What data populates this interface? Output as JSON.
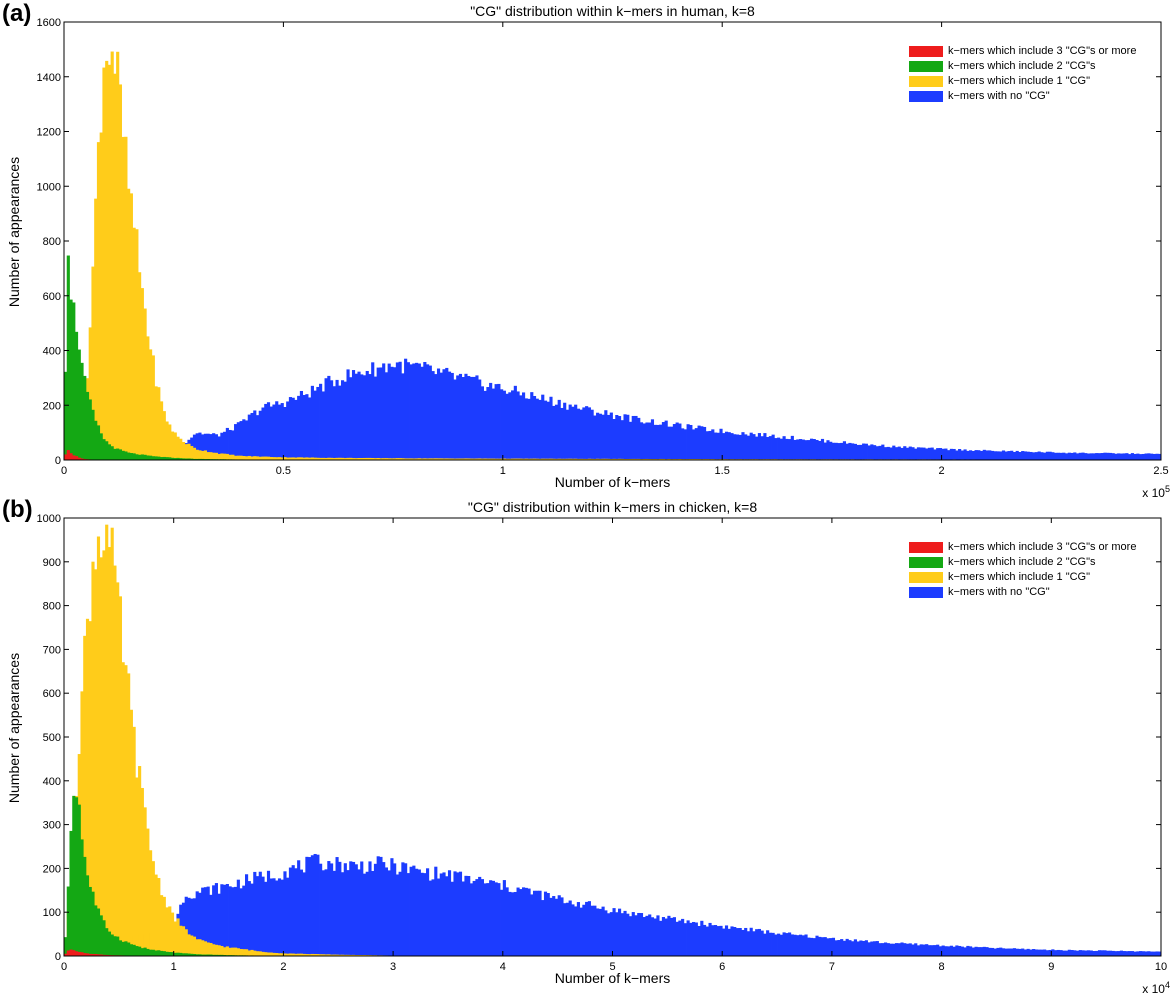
{
  "figure": {
    "panels": [
      {
        "letter": "(a)",
        "chart_title": "\"CG\" distribution within k−mers in human, k=8",
        "x_label": "Number of k−mers",
        "y_label": "Number of appearances",
        "multiplier_base": "x 10",
        "multiplier_exp": "5",
        "legend": [
          "k−mers which include 3 \"CG\"s or more",
          "k−mers which include 2 \"CG\"s",
          "k−mers which include 1 \"CG\"",
          "k−mers with no \"CG\""
        ]
      },
      {
        "letter": "(b)",
        "chart_title": "\"CG\" distribution within k−mers in chicken, k=8",
        "x_label": "Number of k−mers",
        "y_label": "Number of appearances",
        "multiplier_base": "x 10",
        "multiplier_exp": "4",
        "legend": [
          "k−mers which include 3 \"CG\"s or more",
          "k−mers which include 2 \"CG\"s",
          "k−mers which include 1 \"CG\"",
          "k−mers with no \"CG\""
        ]
      }
    ]
  },
  "colors": {
    "three_plus_cg": "#ee1c1c",
    "two_cg": "#14a814",
    "one_cg": "#ffcc1a",
    "no_cg": "#1c3cff"
  },
  "chart_data": [
    {
      "type": "bar",
      "title": "\"CG\" distribution within k−mers in human, k=8",
      "xlabel": "Number of k−mers",
      "ylabel": "Number of appearances",
      "xlim": [
        0,
        250000
      ],
      "ylim": [
        0,
        1600
      ],
      "x_ticks": [
        0,
        0.5,
        1,
        1.5,
        2,
        2.5
      ],
      "x_multiplier": "x 10^5",
      "y_ticks": [
        0,
        200,
        400,
        600,
        800,
        1000,
        1200,
        1400,
        1600
      ],
      "grid": false,
      "legend_position": "top-right",
      "stacked_overlay": true,
      "series": [
        {
          "name": "k−mers with no \"CG\"",
          "color": "#1c3cff",
          "points": [
            [
              0,
              0
            ],
            [
              25000,
              20
            ],
            [
              30000,
              100
            ],
            [
              35000,
              90
            ],
            [
              40000,
              130
            ],
            [
              45000,
              190
            ],
            [
              50000,
              210
            ],
            [
              55000,
              240
            ],
            [
              60000,
              280
            ],
            [
              65000,
              310
            ],
            [
              70000,
              330
            ],
            [
              75000,
              350
            ],
            [
              80000,
              340
            ],
            [
              85000,
              320
            ],
            [
              90000,
              300
            ],
            [
              95000,
              280
            ],
            [
              100000,
              260
            ],
            [
              110000,
              220
            ],
            [
              120000,
              180
            ],
            [
              130000,
              150
            ],
            [
              140000,
              125
            ],
            [
              150000,
              105
            ],
            [
              160000,
              90
            ],
            [
              170000,
              75
            ],
            [
              180000,
              60
            ],
            [
              190000,
              48
            ],
            [
              200000,
              40
            ],
            [
              210000,
              34
            ],
            [
              220000,
              30
            ],
            [
              230000,
              26
            ],
            [
              240000,
              24
            ],
            [
              250000,
              22
            ]
          ]
        },
        {
          "name": "k−mers which include 1 \"CG\"",
          "color": "#ffcc1a",
          "points": [
            [
              0,
              0
            ],
            [
              3000,
              60
            ],
            [
              5000,
              250
            ],
            [
              6000,
              500
            ],
            [
              7000,
              850
            ],
            [
              8000,
              1200
            ],
            [
              9000,
              1450
            ],
            [
              10000,
              1520
            ],
            [
              11000,
              1500
            ],
            [
              12000,
              1420
            ],
            [
              13000,
              1270
            ],
            [
              14000,
              1100
            ],
            [
              15000,
              960
            ],
            [
              16000,
              850
            ],
            [
              17000,
              720
            ],
            [
              18000,
              600
            ],
            [
              19000,
              480
            ],
            [
              20000,
              380
            ],
            [
              21000,
              290
            ],
            [
              22000,
              220
            ],
            [
              23000,
              160
            ],
            [
              25000,
              100
            ],
            [
              27000,
              70
            ],
            [
              30000,
              40
            ],
            [
              35000,
              25
            ],
            [
              40000,
              15
            ],
            [
              50000,
              10
            ],
            [
              60000,
              8
            ],
            [
              80000,
              6
            ],
            [
              100000,
              5
            ],
            [
              150000,
              3
            ],
            [
              200000,
              2
            ],
            [
              250000,
              1
            ]
          ]
        },
        {
          "name": "k−mers which include 2 \"CG\"s",
          "color": "#14a814",
          "points": [
            [
              0,
              0
            ],
            [
              500,
              560
            ],
            [
              1000,
              830
            ],
            [
              1500,
              640
            ],
            [
              2000,
              560
            ],
            [
              2500,
              520
            ],
            [
              3000,
              480
            ],
            [
              3500,
              420
            ],
            [
              4000,
              350
            ],
            [
              4500,
              300
            ],
            [
              5000,
              260
            ],
            [
              6000,
              200
            ],
            [
              7000,
              150
            ],
            [
              8000,
              110
            ],
            [
              9000,
              80
            ],
            [
              10000,
              60
            ],
            [
              12000,
              40
            ],
            [
              15000,
              25
            ],
            [
              20000,
              14
            ],
            [
              25000,
              8
            ],
            [
              30000,
              4
            ],
            [
              40000,
              2
            ],
            [
              50000,
              0
            ]
          ]
        },
        {
          "name": "k−mers which include 3 \"CG\"s or more",
          "color": "#ee1c1c",
          "points": [
            [
              0,
              0
            ],
            [
              500,
              30
            ],
            [
              1000,
              35
            ],
            [
              1500,
              28
            ],
            [
              2000,
              20
            ],
            [
              3000,
              12
            ],
            [
              4000,
              6
            ],
            [
              5000,
              3
            ],
            [
              7000,
              1
            ],
            [
              10000,
              0
            ]
          ]
        }
      ]
    },
    {
      "type": "bar",
      "title": "\"CG\" distribution within k−mers in chicken, k=8",
      "xlabel": "Number of k−mers",
      "ylabel": "Number of appearances",
      "xlim": [
        0,
        100000
      ],
      "ylim": [
        0,
        1000
      ],
      "x_ticks": [
        0,
        1,
        2,
        3,
        4,
        5,
        6,
        7,
        8,
        9,
        10
      ],
      "x_multiplier": "x 10^4",
      "y_ticks": [
        0,
        100,
        200,
        300,
        400,
        500,
        600,
        700,
        800,
        900,
        1000
      ],
      "grid": false,
      "legend_position": "top-right",
      "stacked_overlay": true,
      "series": [
        {
          "name": "k−mers with no \"CG\"",
          "color": "#1c3cff",
          "points": [
            [
              0,
              0
            ],
            [
              10000,
              70
            ],
            [
              11000,
              140
            ],
            [
              13000,
              150
            ],
            [
              15000,
              160
            ],
            [
              17000,
              175
            ],
            [
              19000,
              185
            ],
            [
              21000,
              200
            ],
            [
              23000,
              215
            ],
            [
              25000,
              210
            ],
            [
              27000,
              205
            ],
            [
              29000,
              210
            ],
            [
              31000,
              200
            ],
            [
              33000,
              190
            ],
            [
              35000,
              185
            ],
            [
              37000,
              175
            ],
            [
              39000,
              165
            ],
            [
              42000,
              150
            ],
            [
              45000,
              130
            ],
            [
              48000,
              115
            ],
            [
              51000,
              100
            ],
            [
              55000,
              85
            ],
            [
              60000,
              68
            ],
            [
              65000,
              52
            ],
            [
              70000,
              40
            ],
            [
              75000,
              30
            ],
            [
              80000,
              24
            ],
            [
              85000,
              18
            ],
            [
              90000,
              14
            ],
            [
              95000,
              12
            ],
            [
              100000,
              10
            ]
          ]
        },
        {
          "name": "k−mers which include 1 \"CG\"",
          "color": "#ffcc1a",
          "points": [
            [
              0,
              0
            ],
            [
              500,
              120
            ],
            [
              1000,
              350
            ],
            [
              1500,
              550
            ],
            [
              2000,
              730
            ],
            [
              2500,
              860
            ],
            [
              3000,
              950
            ],
            [
              3500,
              985
            ],
            [
              4000,
              950
            ],
            [
              4500,
              880
            ],
            [
              5000,
              780
            ],
            [
              5500,
              680
            ],
            [
              6000,
              570
            ],
            [
              6500,
              470
            ],
            [
              7000,
              380
            ],
            [
              7500,
              300
            ],
            [
              8000,
              230
            ],
            [
              8500,
              180
            ],
            [
              9000,
              140
            ],
            [
              10000,
              90
            ],
            [
              11000,
              60
            ],
            [
              12000,
              40
            ],
            [
              13000,
              30
            ],
            [
              15000,
              20
            ],
            [
              18000,
              10
            ],
            [
              20000,
              6
            ],
            [
              25000,
              3
            ],
            [
              30000,
              1
            ],
            [
              40000,
              0
            ]
          ]
        },
        {
          "name": "k−mers which include 2 \"CG\"s",
          "color": "#14a814",
          "points": [
            [
              0,
              0
            ],
            [
              250,
              80
            ],
            [
              500,
              250
            ],
            [
              750,
              330
            ],
            [
              1000,
              400
            ],
            [
              1250,
              380
            ],
            [
              1500,
              300
            ],
            [
              1750,
              250
            ],
            [
              2000,
              200
            ],
            [
              2500,
              150
            ],
            [
              3000,
              110
            ],
            [
              3500,
              80
            ],
            [
              4000,
              60
            ],
            [
              5000,
              40
            ],
            [
              6000,
              28
            ],
            [
              7000,
              20
            ],
            [
              8000,
              14
            ],
            [
              10000,
              8
            ],
            [
              12000,
              4
            ],
            [
              15000,
              2
            ],
            [
              20000,
              0
            ]
          ]
        },
        {
          "name": "k−mers which include 3 \"CG\"s or more",
          "color": "#ee1c1c",
          "points": [
            [
              0,
              0
            ],
            [
              250,
              10
            ],
            [
              500,
              14
            ],
            [
              1000,
              12
            ],
            [
              1500,
              9
            ],
            [
              2000,
              6
            ],
            [
              3000,
              4
            ],
            [
              4000,
              2
            ],
            [
              6000,
              1
            ],
            [
              8000,
              0
            ]
          ]
        }
      ]
    }
  ]
}
